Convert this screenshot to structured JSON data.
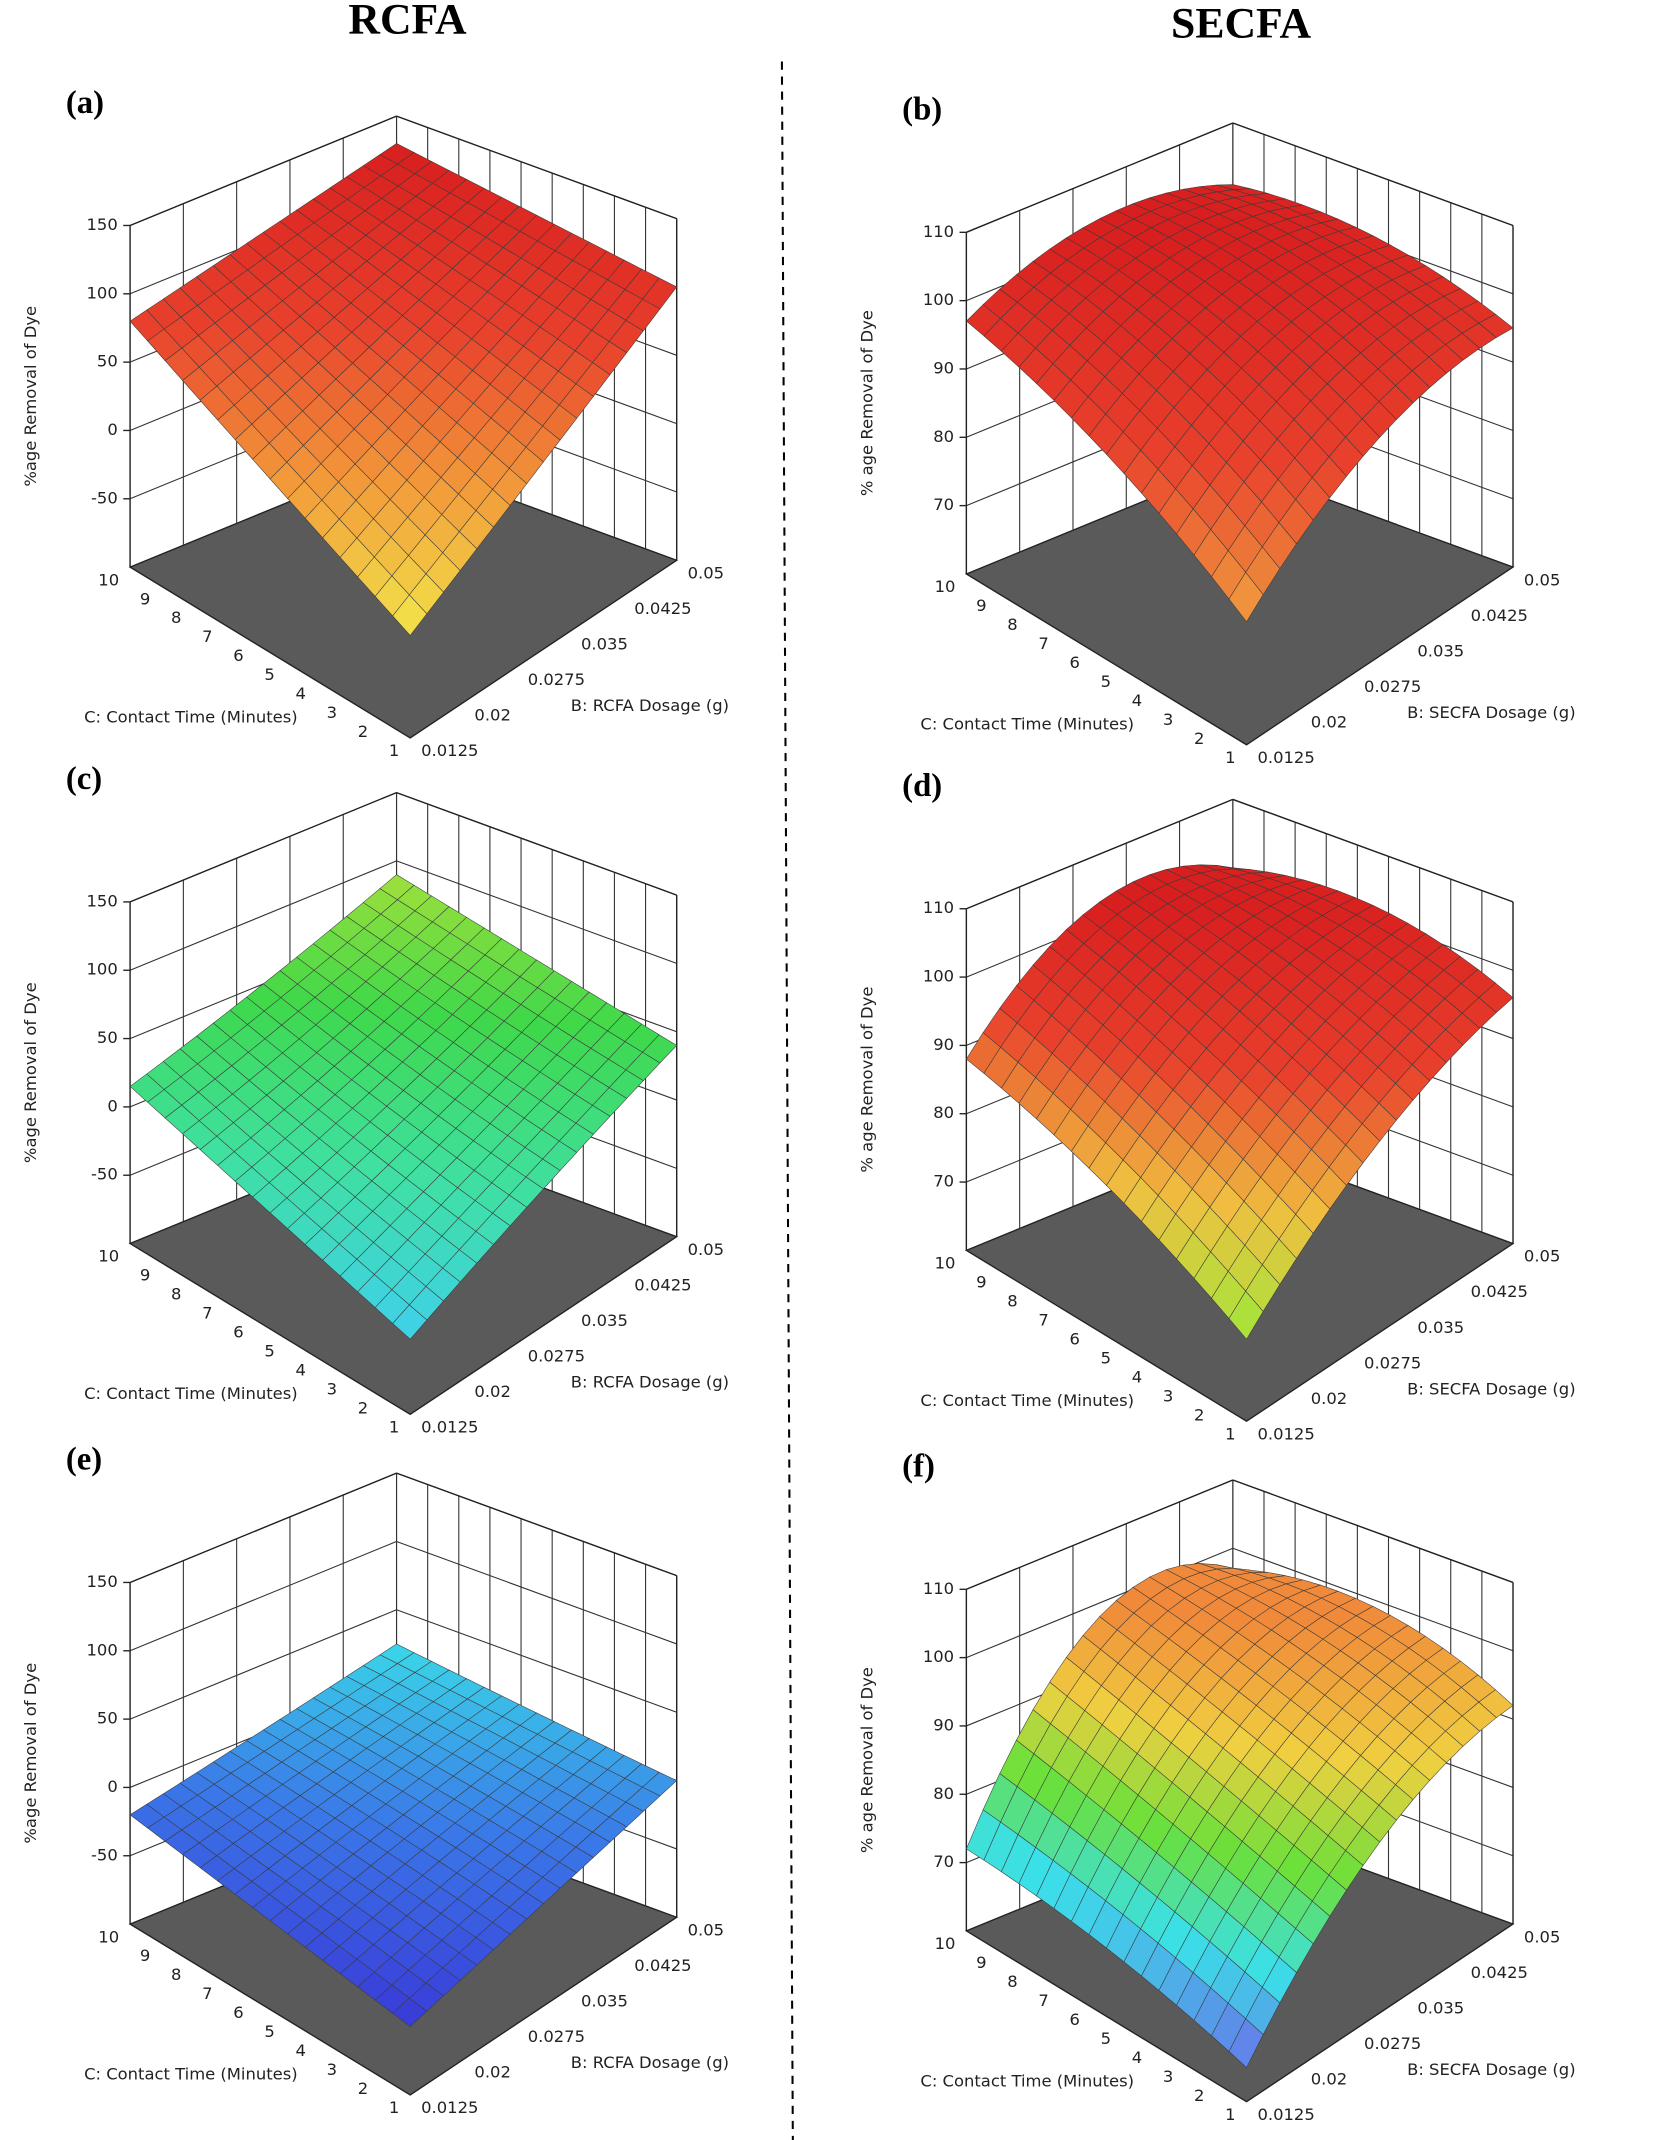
{
  "headings": [
    "RCFA",
    "SECFA"
  ],
  "chart_data": [
    {
      "type": "surface3d",
      "label": "(a)",
      "x_label": "B: RCFA Dosage (g)",
      "y_label": "C: Contact Time (Minutes)",
      "z_label": "%age Removal of Dye",
      "xlim": [
        0.0125,
        0.05
      ],
      "xticks": [
        0.0125,
        0.02,
        0.0275,
        0.035,
        0.0425,
        0.05
      ],
      "ylim": [
        1,
        10
      ],
      "yticks": [
        1,
        2,
        3,
        4,
        5,
        6,
        7,
        8,
        9,
        10
      ],
      "zlim": [
        -100,
        150
      ],
      "zticks": [
        -50,
        0,
        50,
        100,
        150
      ],
      "x": [
        0.0125,
        0.03125,
        0.05
      ],
      "y": [
        1,
        5.5,
        10
      ],
      "z": [
        [
          -25,
          37,
          100
        ],
        [
          27,
          72,
          115
        ],
        [
          80,
          105,
          130
        ]
      ],
      "colormap": [
        "#f2e64a",
        "#f29a3a",
        "#e8402c",
        "#d81f1f"
      ]
    },
    {
      "type": "surface3d",
      "label": "(b)",
      "x_label": "B: SECFA Dosage (g)",
      "y_label": "C: Contact Time (Minutes)",
      "z_label": "% age Removal of Dye",
      "xlim": [
        0.0125,
        0.05
      ],
      "xticks": [
        0.0125,
        0.02,
        0.0275,
        0.035,
        0.0425,
        0.05
      ],
      "ylim": [
        1,
        10
      ],
      "yticks": [
        1,
        2,
        3,
        4,
        5,
        6,
        7,
        8,
        9,
        10
      ],
      "zlim": [
        60,
        110
      ],
      "zticks": [
        70,
        80,
        90,
        100,
        110
      ],
      "x": [
        0.0125,
        0.03125,
        0.05
      ],
      "y": [
        1,
        5.5,
        10
      ],
      "z": [
        [
          78,
          92,
          95
        ],
        [
          90,
          101,
          101
        ],
        [
          97,
          104,
          101
        ]
      ],
      "colormap": [
        "#f0a040",
        "#e8402c",
        "#d81f1f"
      ]
    },
    {
      "type": "surface3d",
      "label": "(c)",
      "x_label": "B: RCFA Dosage (g)",
      "y_label": "C: Contact Time (Minutes)",
      "z_label": "%age Removal of Dye",
      "xlim": [
        0.0125,
        0.05
      ],
      "xticks": [
        0.0125,
        0.02,
        0.0275,
        0.035,
        0.0425,
        0.05
      ],
      "ylim": [
        1,
        10
      ],
      "yticks": [
        1,
        2,
        3,
        4,
        5,
        6,
        7,
        8,
        9,
        10
      ],
      "zlim": [
        -100,
        150
      ],
      "zticks": [
        -50,
        0,
        50,
        100,
        150
      ],
      "x": [
        0.0125,
        0.03125,
        0.05
      ],
      "y": [
        1,
        5.5,
        10
      ],
      "z": [
        [
          -45,
          0,
          40
        ],
        [
          -15,
          22,
          65
        ],
        [
          15,
          50,
          90
        ]
      ],
      "colormap": [
        "#3fd0ec",
        "#3fe0a0",
        "#3fd84a",
        "#9fe03a"
      ]
    },
    {
      "type": "surface3d",
      "label": "(d)",
      "x_label": "B: SECFA Dosage (g)",
      "y_label": "C: Contact Time (Minutes)",
      "z_label": "% age Removal of Dye",
      "xlim": [
        0.0125,
        0.05
      ],
      "xticks": [
        0.0125,
        0.02,
        0.0275,
        0.035,
        0.0425,
        0.05
      ],
      "ylim": [
        1,
        10
      ],
      "yticks": [
        1,
        2,
        3,
        4,
        5,
        6,
        7,
        8,
        9,
        10
      ],
      "zlim": [
        60,
        110
      ],
      "zticks": [
        70,
        80,
        90,
        100,
        110
      ],
      "x": [
        0.0125,
        0.03125,
        0.05
      ],
      "y": [
        1,
        5.5,
        10
      ],
      "z": [
        [
          72,
          88,
          96
        ],
        [
          82,
          97,
          102
        ],
        [
          88,
          103,
          100
        ]
      ],
      "colormap": [
        "#9ee83a",
        "#f0c040",
        "#e8402c",
        "#d81f1f"
      ]
    },
    {
      "type": "surface3d",
      "label": "(e)",
      "x_label": "B: RCFA Dosage (g)",
      "y_label": "C: Contact Time (Minutes)",
      "z_label": "%age Removal of Dye",
      "xlim": [
        0.0125,
        0.05
      ],
      "xticks": [
        0.0125,
        0.02,
        0.0275,
        0.035,
        0.0425,
        0.05
      ],
      "ylim": [
        1,
        10
      ],
      "yticks": [
        1,
        2,
        3,
        4,
        5,
        6,
        7,
        8,
        9,
        10
      ],
      "zlim": [
        -100,
        150
      ],
      "zticks": [
        -50,
        0,
        50,
        100,
        150
      ],
      "x": [
        0.0125,
        0.03125,
        0.05
      ],
      "y": [
        1,
        5.5,
        10
      ],
      "z": [
        [
          -50,
          -25,
          0
        ],
        [
          -35,
          -10,
          12
        ],
        [
          -20,
          2,
          25
        ]
      ],
      "colormap": [
        "#3a3ad8",
        "#3a78e8",
        "#3ad8e8"
      ]
    },
    {
      "type": "surface3d",
      "label": "(f)",
      "x_label": "B: SECFA Dosage (g)",
      "y_label": "C: Contact Time (Minutes)",
      "z_label": "% age Removal of Dye",
      "xlim": [
        0.0125,
        0.05
      ],
      "xticks": [
        0.0125,
        0.02,
        0.0275,
        0.035,
        0.0425,
        0.05
      ],
      "ylim": [
        1,
        10
      ],
      "yticks": [
        1,
        2,
        3,
        4,
        5,
        6,
        7,
        8,
        9,
        10
      ],
      "zlim": [
        60,
        110
      ],
      "zticks": [
        70,
        80,
        90,
        100,
        110
      ],
      "x": [
        0.0125,
        0.03125,
        0.05
      ],
      "y": [
        1,
        5.5,
        10
      ],
      "z": [
        [
          65,
          85,
          92
        ],
        [
          70,
          92,
          99
        ],
        [
          72,
          98,
          97
        ]
      ],
      "colormap": [
        "#6a6ae8",
        "#3ae0e8",
        "#6ae03a",
        "#f0d040",
        "#f08a3a"
      ]
    }
  ]
}
